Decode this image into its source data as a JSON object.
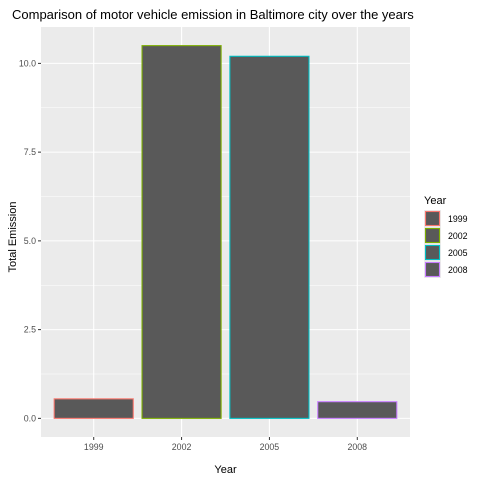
{
  "chart_data": {
    "type": "bar",
    "title": "Comparison of motor vehicle emission in Baltimore city over the years",
    "xlabel": "Year",
    "ylabel": "Total Emission",
    "categories": [
      "1999",
      "2002",
      "2005",
      "2008"
    ],
    "values": [
      0.55,
      10.5,
      10.2,
      0.47
    ],
    "ylim": [
      -0.525,
      11.025
    ],
    "yticks": [
      0.0,
      2.5,
      5.0,
      7.5,
      10.0
    ],
    "ytick_labels": [
      "0.0",
      "2.5",
      "5.0",
      "7.5",
      "10.0"
    ],
    "grid": true,
    "legend": {
      "title": "Year",
      "position": "right",
      "entries": [
        "1999",
        "2002",
        "2005",
        "2008"
      ]
    },
    "colors": {
      "bar_fill": "#595959",
      "panel_background": "#ebebeb",
      "grid_major": "#ffffff",
      "series_outlines": [
        "#f8766d",
        "#7cae00",
        "#00bfc4",
        "#c77cff"
      ]
    }
  }
}
